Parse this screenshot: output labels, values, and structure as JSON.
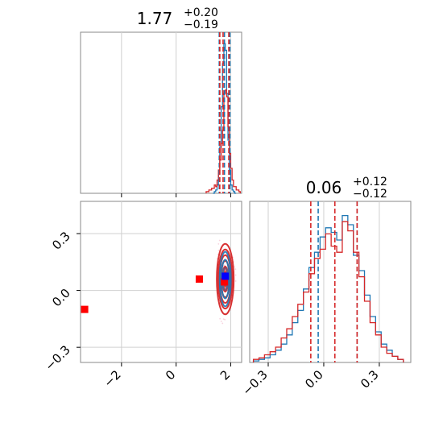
{
  "chart_data": [
    {
      "type": "histogram",
      "panel": "top-left",
      "title_value": "1.77",
      "title_plus": "+0.20",
      "title_minus": "−0.19",
      "xlim": [
        -3.5,
        2.4
      ],
      "xgrid": [
        -2,
        0,
        2
      ],
      "grid": true,
      "quantile_lines": {
        "blue": [
          1.58,
          1.77,
          1.97
        ],
        "red": [
          1.6,
          1.72,
          1.93
        ]
      },
      "series": [
        {
          "color": "#1f77b4",
          "bins_x": [
            1.35,
            1.4,
            1.45,
            1.5,
            1.55,
            1.6,
            1.65,
            1.7,
            1.75,
            1.8,
            1.85,
            1.9,
            1.95,
            2.0,
            2.05,
            2.1,
            2.15
          ],
          "heights": [
            0,
            1,
            2,
            5,
            12,
            28,
            52,
            78,
            90,
            86,
            60,
            32,
            14,
            5,
            2,
            1,
            0
          ]
        },
        {
          "color": "#d62728",
          "bins_x": [
            1.1,
            1.2,
            1.3,
            1.4,
            1.45,
            1.5,
            1.55,
            1.6,
            1.65,
            1.7,
            1.75,
            1.8,
            1.85,
            1.9,
            1.95,
            2.0,
            2.05,
            2.1,
            2.2,
            2.3
          ],
          "heights": [
            1,
            2,
            3,
            5,
            4,
            8,
            14,
            20,
            30,
            38,
            60,
            62,
            58,
            40,
            24,
            15,
            8,
            4,
            2,
            1
          ]
        }
      ]
    },
    {
      "type": "contour",
      "panel": "bottom-left",
      "xlim": [
        -3.5,
        2.4
      ],
      "ylim": [
        -0.38,
        0.47
      ],
      "xticks": [
        "−2",
        "0",
        "2"
      ],
      "xtick_values": [
        -2,
        0,
        2
      ],
      "yticks": [
        "−0.3",
        "0.0",
        "0.3"
      ],
      "ytick_values": [
        -0.3,
        0.0,
        0.3
      ],
      "grid": true,
      "blob_center": [
        1.8,
        0.06
      ],
      "blob_sigma": [
        0.2,
        0.12
      ],
      "markers": [
        {
          "color": "#ff0000",
          "x": -3.35,
          "y": -0.1
        },
        {
          "color": "#ff0000",
          "x": 0.85,
          "y": 0.06
        },
        {
          "color": "#ff0000",
          "x": 1.77,
          "y": 0.045
        },
        {
          "color": "#0000ff",
          "x": 1.8,
          "y": 0.075
        }
      ]
    },
    {
      "type": "histogram",
      "panel": "bottom-right",
      "title_value": "0.06",
      "title_plus": "+0.12",
      "title_minus": "−0.12",
      "xlim": [
        -0.4,
        0.47
      ],
      "xticks": [
        "−0.3",
        "0.0",
        "0.3"
      ],
      "xtick_values": [
        -0.3,
        0.0,
        0.3
      ],
      "grid": true,
      "quantile_lines": {
        "blue": [
          -0.03,
          0.18
        ],
        "red": [
          -0.07,
          0.06,
          0.18
        ]
      },
      "series": [
        {
          "color": "#1f77b4",
          "bins_x": [
            -0.38,
            -0.35,
            -0.32,
            -0.29,
            -0.26,
            -0.23,
            -0.2,
            -0.17,
            -0.14,
            -0.11,
            -0.08,
            -0.05,
            -0.02,
            0.01,
            0.04,
            0.07,
            0.1,
            0.13,
            0.16,
            0.19,
            0.22,
            0.25,
            0.28,
            0.31,
            0.34,
            0.37,
            0.4
          ],
          "heights": [
            1,
            2,
            3,
            5,
            8,
            12,
            18,
            26,
            34,
            48,
            62,
            72,
            82,
            88,
            85,
            80,
            96,
            90,
            70,
            60,
            44,
            30,
            20,
            12,
            8,
            4,
            2
          ]
        },
        {
          "color": "#d62728",
          "bins_x": [
            -0.38,
            -0.35,
            -0.32,
            -0.29,
            -0.26,
            -0.23,
            -0.2,
            -0.17,
            -0.14,
            -0.11,
            -0.08,
            -0.05,
            -0.02,
            0.01,
            0.04,
            0.07,
            0.1,
            0.13,
            0.16,
            0.19,
            0.22,
            0.25,
            0.28,
            0.31,
            0.34,
            0.37,
            0.4
          ],
          "heights": [
            2,
            3,
            5,
            7,
            10,
            16,
            22,
            30,
            38,
            46,
            58,
            68,
            74,
            84,
            76,
            72,
            92,
            86,
            72,
            56,
            40,
            26,
            18,
            10,
            6,
            4,
            2
          ]
        }
      ]
    }
  ]
}
